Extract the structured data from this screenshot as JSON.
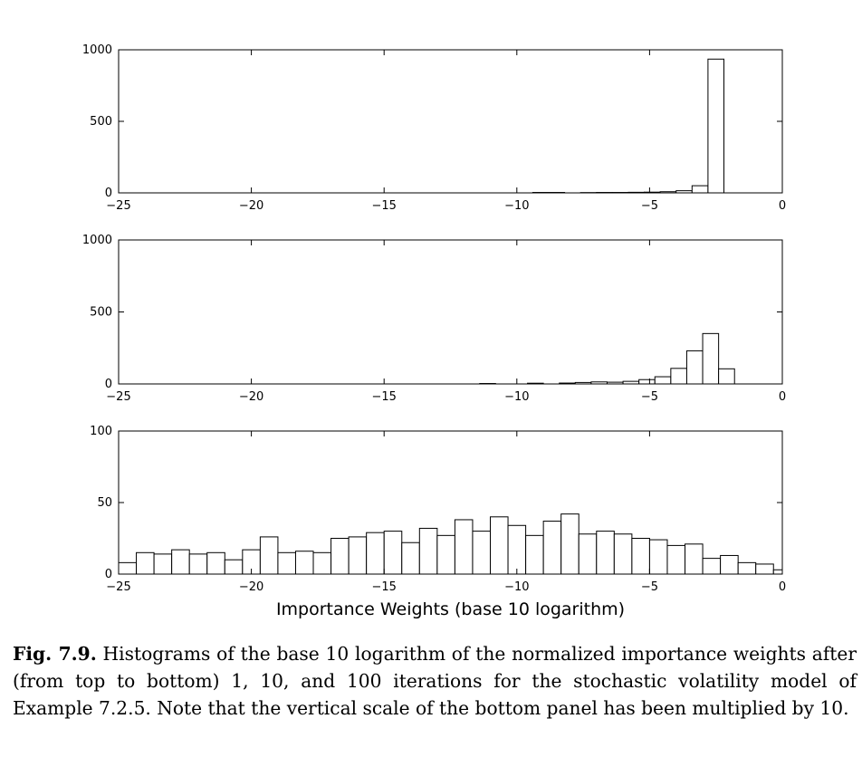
{
  "chart_data": [
    {
      "type": "bar",
      "xlim": [
        -25,
        0
      ],
      "ylim": [
        0,
        1000
      ],
      "xticks": [
        -25,
        -20,
        -15,
        -10,
        -5,
        0
      ],
      "yticks": [
        0,
        500,
        1000
      ],
      "xtick_labels": [
        "−25",
        "−20",
        "−15",
        "−10",
        "−5",
        "0"
      ],
      "ytick_labels": [
        "0",
        "500",
        "1000"
      ],
      "bins": [
        {
          "x0": -9.4,
          "x1": -8.2,
          "value": 3
        },
        {
          "x0": -7.6,
          "x1": -7.0,
          "value": 2
        },
        {
          "x0": -7.0,
          "x1": -6.4,
          "value": 3
        },
        {
          "x0": -6.4,
          "x1": -5.8,
          "value": 3
        },
        {
          "x0": -5.8,
          "x1": -5.2,
          "value": 4
        },
        {
          "x0": -5.2,
          "x1": -4.6,
          "value": 5
        },
        {
          "x0": -4.6,
          "x1": -4.0,
          "value": 8
        },
        {
          "x0": -4.0,
          "x1": -3.4,
          "value": 15
        },
        {
          "x0": -3.4,
          "x1": -2.8,
          "value": 50
        },
        {
          "x0": -2.8,
          "x1": -2.2,
          "value": 935
        }
      ]
    },
    {
      "type": "bar",
      "xlim": [
        -25,
        0
      ],
      "ylim": [
        0,
        1000
      ],
      "xticks": [
        -25,
        -20,
        -15,
        -10,
        -5,
        0
      ],
      "yticks": [
        0,
        500,
        1000
      ],
      "xtick_labels": [
        "−25",
        "−20",
        "−15",
        "−10",
        "−5",
        "0"
      ],
      "ytick_labels": [
        "0",
        "500",
        "1000"
      ],
      "bins": [
        {
          "x0": -11.4,
          "x1": -10.8,
          "value": 3
        },
        {
          "x0": -9.6,
          "x1": -9.0,
          "value": 5
        },
        {
          "x0": -8.4,
          "x1": -7.8,
          "value": 6
        },
        {
          "x0": -7.8,
          "x1": -7.2,
          "value": 10
        },
        {
          "x0": -7.2,
          "x1": -6.6,
          "value": 14
        },
        {
          "x0": -6.6,
          "x1": -6.0,
          "value": 12
        },
        {
          "x0": -6.0,
          "x1": -5.4,
          "value": 18
        },
        {
          "x0": -5.4,
          "x1": -4.8,
          "value": 30
        },
        {
          "x0": -4.8,
          "x1": -4.2,
          "value": 50
        },
        {
          "x0": -4.2,
          "x1": -3.6,
          "value": 108
        },
        {
          "x0": -3.6,
          "x1": -3.0,
          "value": 230
        },
        {
          "x0": -3.0,
          "x1": -2.4,
          "value": 350
        },
        {
          "x0": -2.4,
          "x1": -1.8,
          "value": 105
        }
      ]
    },
    {
      "type": "bar",
      "xlim": [
        -25,
        0
      ],
      "ylim": [
        0,
        100
      ],
      "xticks": [
        -25,
        -20,
        -15,
        -10,
        -5,
        0
      ],
      "yticks": [
        0,
        50,
        100
      ],
      "xtick_labels": [
        "−25",
        "−20",
        "−15",
        "−10",
        "−5",
        "0"
      ],
      "ytick_labels": [
        "0",
        "50",
        "100"
      ],
      "xlabel": "Importance Weights (base 10 logarithm)",
      "bin_start": -25,
      "bin_width": 0.6667,
      "values": [
        8,
        15,
        14,
        17,
        14,
        15,
        10,
        17,
        26,
        15,
        16,
        15,
        25,
        26,
        29,
        30,
        22,
        32,
        27,
        38,
        30,
        40,
        34,
        27,
        37,
        42,
        28,
        30,
        28,
        25,
        24,
        20,
        21,
        11,
        13,
        8,
        7,
        3,
        1
      ]
    }
  ],
  "caption": {
    "label": "Fig. 7.9.",
    "text": " Histograms of the base 10 logarithm of the normalized importance weights after (from top to bottom) 1, 10, and 100 iterations for the stochastic volatility model of Example 7.2.5. Note that the vertical scale of the bottom panel has been multiplied by 10."
  }
}
